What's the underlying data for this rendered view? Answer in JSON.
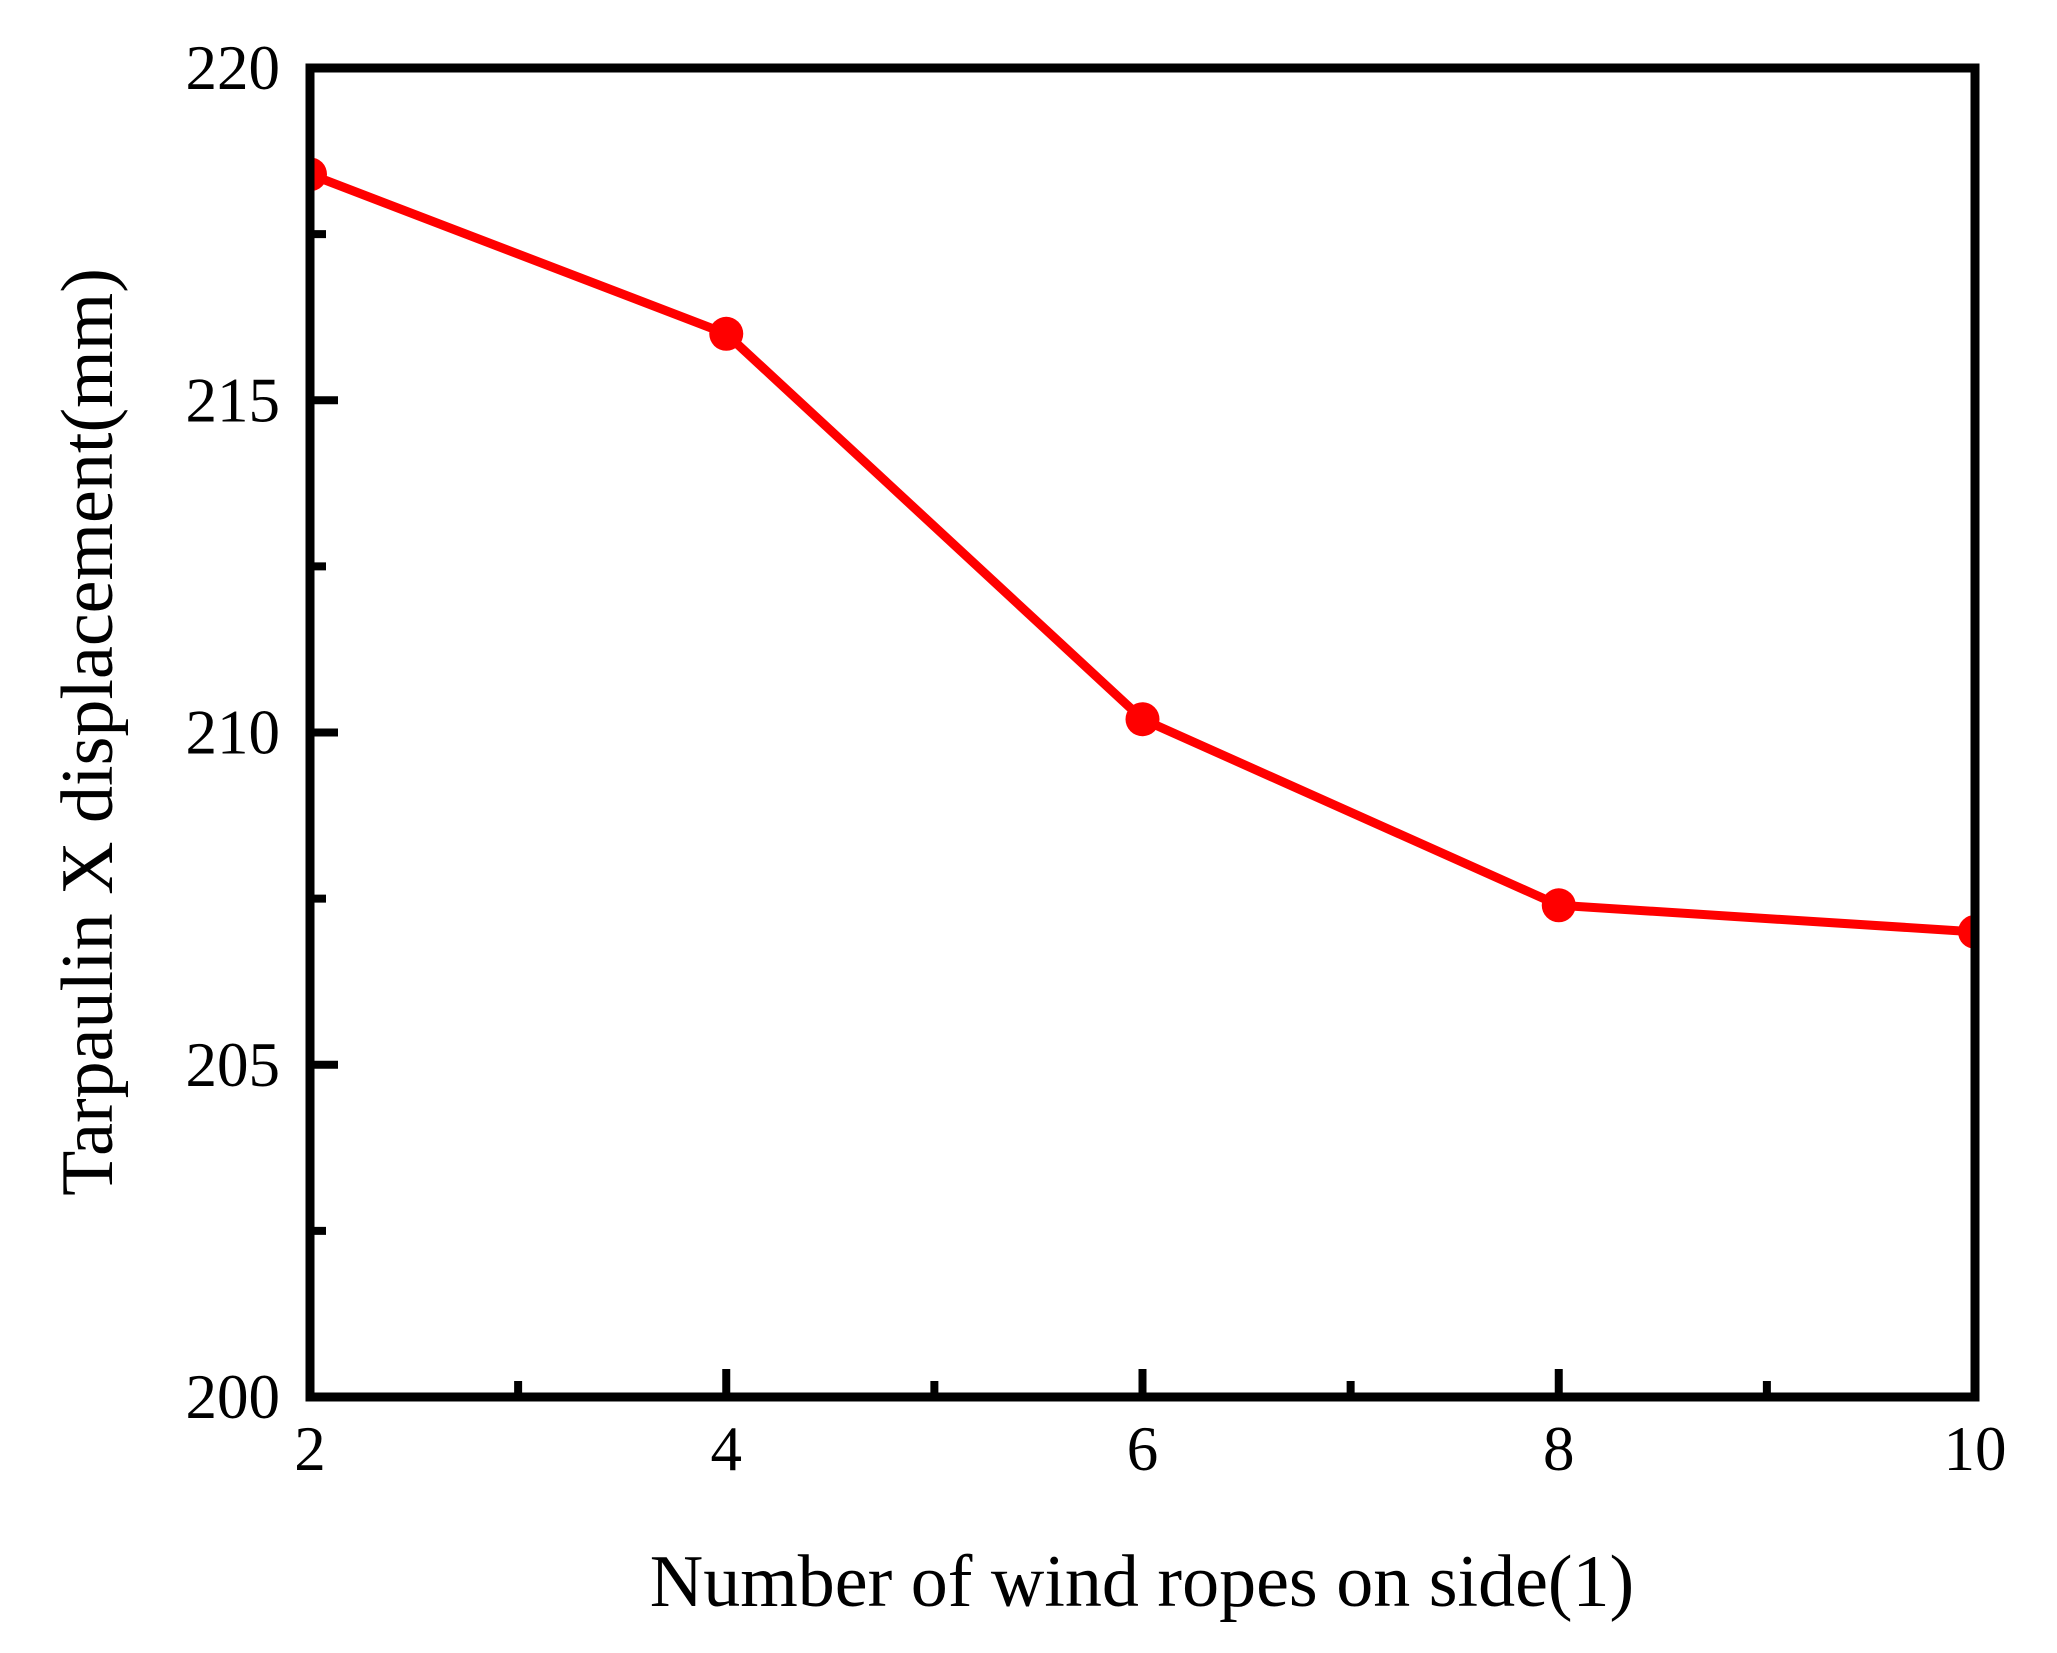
{
  "chart_data": {
    "type": "line",
    "title": "",
    "xlabel": "Number of wind ropes on side(1)",
    "ylabel": "Tarpaulin X displacement(mm)",
    "x": [
      2,
      4,
      6,
      8,
      10
    ],
    "series": [
      {
        "name": "Tarpaulin X displacement",
        "color": "#FF0000",
        "values": [
          218.4,
          216.0,
          210.2,
          207.4,
          207.0
        ]
      }
    ],
    "xlim": [
      2,
      10
    ],
    "ylim": [
      200,
      220
    ],
    "x_major_ticks": [
      2,
      4,
      6,
      8,
      10
    ],
    "x_minor_ticks": [
      3,
      5,
      7,
      9
    ],
    "y_major_ticks": [
      200,
      205,
      210,
      215,
      220
    ],
    "y_minor_ticks": [
      202.5,
      207.5,
      212.5,
      217.5
    ],
    "x_tick_labels": [
      "2",
      "4",
      "6",
      "8",
      "10"
    ],
    "y_tick_labels": [
      "200",
      "205",
      "210",
      "215",
      "220"
    ],
    "grid": false,
    "legend": "none",
    "axis_color": "#000000",
    "background": "#FFFFFF",
    "marker": "circle"
  }
}
